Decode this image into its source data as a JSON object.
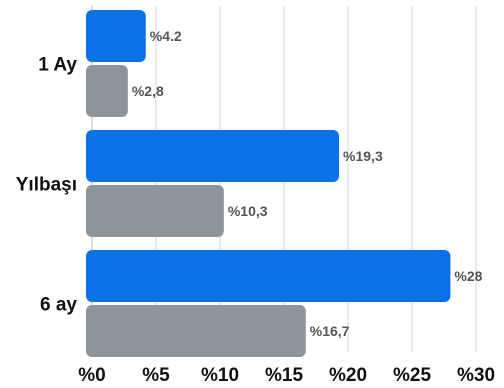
{
  "chart_data": {
    "type": "bar",
    "orientation": "horizontal",
    "categories": [
      "1 Ay",
      "Yılbaşı",
      "6 ay"
    ],
    "series": [
      {
        "color": "#0a72e6",
        "values": [
          4.2,
          19.3,
          28
        ],
        "labels": [
          "%4.2",
          "%19,3",
          "%28"
        ]
      },
      {
        "color": "#8c959c",
        "values": [
          2.8,
          10.3,
          16.7
        ],
        "labels": [
          "%2,8",
          "%10,3",
          "%16,7"
        ]
      }
    ],
    "xlim": [
      0,
      30
    ],
    "xticks": [
      0,
      5,
      10,
      15,
      20,
      25,
      30
    ],
    "xtick_labels": [
      "%0",
      "%5",
      "%10",
      "%15",
      "%20",
      "%25",
      "%30"
    ],
    "grid": true,
    "legend": "none"
  }
}
